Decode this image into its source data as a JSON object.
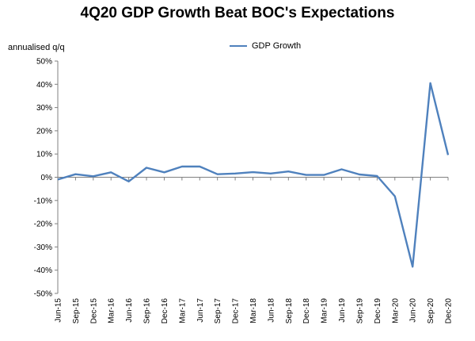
{
  "chart_data": {
    "type": "line",
    "title": "4Q20 GDP Growth Beat BOC's Expectations",
    "ylabel": "annualised q/q",
    "xlabel": "",
    "ylim": [
      -50,
      50
    ],
    "y_ticks": [
      "50%",
      "40%",
      "30%",
      "20%",
      "10%",
      "0%",
      "-10%",
      "-20%",
      "-30%",
      "-40%",
      "-50%"
    ],
    "y_tick_values": [
      50,
      40,
      30,
      20,
      10,
      0,
      -10,
      -20,
      -30,
      -40,
      -50
    ],
    "categories": [
      "Jun-15",
      "Sep-15",
      "Dec-15",
      "Mar-16",
      "Jun-16",
      "Sep-16",
      "Dec-16",
      "Mar-17",
      "Jun-17",
      "Sep-17",
      "Dec-17",
      "Mar-18",
      "Jun-18",
      "Sep-18",
      "Dec-18",
      "Mar-19",
      "Jun-19",
      "Sep-19",
      "Dec-19",
      "Mar-20",
      "Jun-20",
      "Sep-20",
      "Dec-20"
    ],
    "series": [
      {
        "name": "GDP Growth",
        "color": "#4f81bd",
        "values": [
          -1.0,
          1.3,
          0.4,
          2.1,
          -1.8,
          4.1,
          2.1,
          4.6,
          4.6,
          1.3,
          1.6,
          2.2,
          1.6,
          2.5,
          1.0,
          1.0,
          3.4,
          1.2,
          0.5,
          -8.2,
          -38.5,
          40.5,
          9.6
        ]
      }
    ],
    "legend": "top-center",
    "grid": false
  }
}
